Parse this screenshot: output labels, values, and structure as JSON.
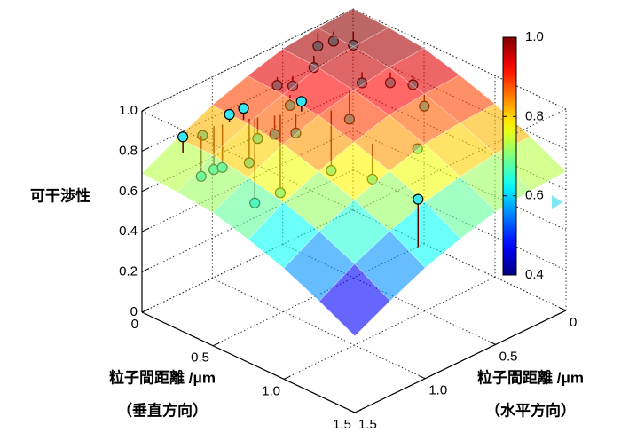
{
  "chart_data": {
    "type": "surface3d",
    "xlabel": [
      "粒子間距離 /μm",
      "（垂直方向）"
    ],
    "ylabel": [
      "粒子間距離 /μm",
      "（水平方向）"
    ],
    "zlabel": "可干渉性",
    "xlim": [
      0,
      1.5
    ],
    "xticks": [
      0,
      0.5,
      {
        "value": 1,
        "label": "1.0"
      },
      1.5
    ],
    "ylim": [
      0,
      1.5
    ],
    "yticks": [
      0,
      0.5,
      {
        "value": 1,
        "label": "1.0"
      },
      1.5
    ],
    "zlim": [
      0,
      1
    ],
    "zticks": [
      0,
      0.2,
      0.4,
      0.6,
      0.8,
      {
        "value": 1,
        "label": "1.0"
      }
    ],
    "grid": true,
    "colormap": "jet",
    "clim": [
      0.4,
      1
    ],
    "cticks": [
      0.4,
      0.6,
      0.8,
      {
        "value": 1,
        "label": "1.0"
      }
    ],
    "surface": {
      "x": [
        0,
        0.25,
        0.5,
        0.75,
        1,
        1.25,
        1.5
      ],
      "y": [
        0,
        0.25,
        0.5,
        0.75,
        1,
        1.25,
        1.5
      ],
      "z": [
        [
          1.0,
          0.99,
          0.97,
          0.92,
          0.86,
          0.78,
          0.69
        ],
        [
          0.99,
          0.98,
          0.96,
          0.91,
          0.85,
          0.78,
          0.68
        ],
        [
          0.97,
          0.96,
          0.93,
          0.89,
          0.83,
          0.75,
          0.66
        ],
        [
          0.92,
          0.91,
          0.89,
          0.84,
          0.78,
          0.71,
          0.61
        ],
        [
          0.86,
          0.85,
          0.83,
          0.78,
          0.72,
          0.65,
          0.55
        ],
        [
          0.78,
          0.78,
          0.75,
          0.71,
          0.65,
          0.57,
          0.47
        ],
        [
          0.69,
          0.68,
          0.66,
          0.61,
          0.55,
          0.47,
          0.38
        ]
      ]
    },
    "points": {
      "color": "#33e8f2",
      "x": [
        0.1,
        0.1,
        0.1,
        0.11,
        0.16,
        0.21,
        0.23,
        0.25,
        0.32,
        0.34,
        0.41,
        0.16,
        0.52,
        1.4,
        0.03,
        0.08,
        0.15,
        0.13,
        0.19,
        0.43,
        0.53,
        0.61,
        0.75,
        0.49,
        0.98,
        0.82,
        0.14,
        0.26,
        0.4,
        0.28
      ],
      "y": [
        1.31,
        1.17,
        1.18,
        1.1,
        1.04,
        0.99,
        0.97,
        0.95,
        0.88,
        0.86,
        0.78,
        0.44,
        0.68,
        0.95,
        0.28,
        0.22,
        0.15,
        0.67,
        0.62,
        0.37,
        0.27,
        0.19,
        0.25,
        0.52,
        0.53,
        0.69,
        1.07,
        0.94,
        0.81,
        0.73
      ],
      "z": [
        0.84,
        0.8,
        0.6,
        0.61,
        0.88,
        0.91,
        0.64,
        0.44,
        0.78,
        0.49,
        0.94,
        0.91,
        0.6,
        0.84,
        0.92,
        0.94,
        0.92,
        0.89,
        0.89,
        0.9,
        0.9,
        0.89,
        0.85,
        0.79,
        0.81,
        0.66,
        0.62,
        0.76,
        0.79,
        0.86
      ]
    }
  }
}
